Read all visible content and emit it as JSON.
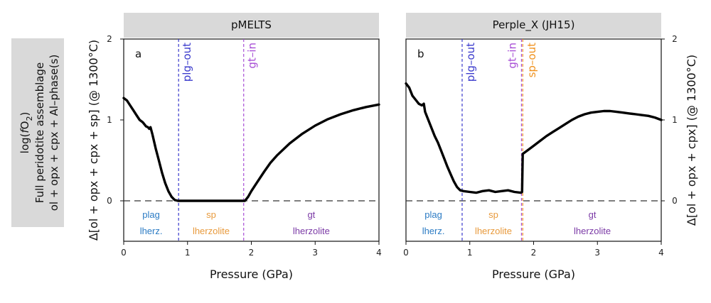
{
  "side_label": {
    "line1": "log(fO2)",
    "line1_main": "log(",
    "line1_f": "f",
    "line1_o": "O",
    "line1_sub": "2",
    "line1_close": ")",
    "line2": "Full peridotite assemblage",
    "line3": "ol + opx + cpx + Al–phase(s)"
  },
  "colors": {
    "curve": "#000000",
    "plg_out": "#3a3acc",
    "gt_in": "#a84fd6",
    "sp_out": "#f0921e",
    "plag_text": "#2b7bc4",
    "sp_text": "#e89a3c",
    "gt_text": "#7b3aa6",
    "strip_bg": "#d9d9d9",
    "side_bg": "#d9d9d9"
  },
  "chart_data": [
    {
      "type": "line",
      "panel": "a",
      "title": "pMELTS",
      "xlabel": "Pressure (GPa)",
      "ylabel": "Δ[ol + opx + cpx + sp] (@ 1300°C)",
      "xlim": [
        0,
        4
      ],
      "ylim": [
        -0.5,
        2
      ],
      "xticks": [
        "0",
        "1",
        "2",
        "3",
        "4"
      ],
      "yticks": [
        "0",
        "1",
        "2"
      ],
      "y_axis_side": "left",
      "reference_line": 0,
      "grid": false,
      "series": [
        {
          "x": [
            0,
            0.05,
            0.1,
            0.15,
            0.2,
            0.25,
            0.3,
            0.35,
            0.38,
            0.4,
            0.42,
            0.45,
            0.5,
            0.55,
            0.6,
            0.65,
            0.7,
            0.75,
            0.8,
            0.85,
            0.9,
            1.0,
            1.2,
            1.4,
            1.6,
            1.8,
            1.9,
            1.95,
            2.0,
            2.1,
            2.2,
            2.3,
            2.4,
            2.6,
            2.8,
            3.0,
            3.2,
            3.4,
            3.6,
            3.8,
            4.0
          ],
          "y": [
            1.27,
            1.24,
            1.18,
            1.12,
            1.06,
            1.0,
            0.97,
            0.92,
            0.91,
            0.89,
            0.91,
            0.82,
            0.65,
            0.5,
            0.35,
            0.22,
            0.12,
            0.05,
            0.01,
            0.0,
            0.0,
            0.0,
            0.0,
            0.0,
            0.0,
            0.0,
            0.0,
            0.05,
            0.12,
            0.24,
            0.36,
            0.47,
            0.56,
            0.71,
            0.83,
            0.93,
            1.01,
            1.07,
            1.12,
            1.16,
            1.19
          ]
        }
      ],
      "phase_boundaries": [
        {
          "label": "plg–out",
          "x": 0.86,
          "color_key": "plg_out"
        },
        {
          "label": "gt–in",
          "x": 1.88,
          "color_key": "gt_in"
        }
      ],
      "zones": [
        {
          "top": "plag",
          "bottom": "lherz.",
          "x_center": 0.43,
          "color_key": "plag_text"
        },
        {
          "top": "sp",
          "bottom": "lherzolite",
          "x_center": 1.37,
          "color_key": "sp_text"
        },
        {
          "top": "gt",
          "bottom": "lherzolite",
          "x_center": 2.94,
          "color_key": "gt_text"
        }
      ]
    },
    {
      "type": "line",
      "panel": "b",
      "title": "Perple_X (JH15)",
      "xlabel": "Pressure (GPa)",
      "ylabel": "Δ[ol + opx + cpx] (@ 1300°C)",
      "xlim": [
        0,
        4
      ],
      "ylim": [
        -0.5,
        2
      ],
      "xticks": [
        "0",
        "1",
        "2",
        "3",
        "4"
      ],
      "yticks": [
        "0",
        "1",
        "2"
      ],
      "y_axis_side": "right",
      "reference_line": 0,
      "grid": false,
      "series": [
        {
          "x": [
            0,
            0.05,
            0.1,
            0.15,
            0.2,
            0.25,
            0.28,
            0.3,
            0.35,
            0.4,
            0.45,
            0.5,
            0.55,
            0.6,
            0.65,
            0.7,
            0.75,
            0.8,
            0.85,
            0.9,
            1.0,
            1.1,
            1.2,
            1.3,
            1.4,
            1.5,
            1.6,
            1.7,
            1.8,
            1.82,
            1.83,
            1.9,
            2.0,
            2.1,
            2.2,
            2.3,
            2.4,
            2.5,
            2.6,
            2.7,
            2.8,
            2.9,
            3.0,
            3.1,
            3.2,
            3.3,
            3.4,
            3.5,
            3.6,
            3.7,
            3.8,
            3.9,
            4.0
          ],
          "y": [
            1.45,
            1.4,
            1.3,
            1.25,
            1.2,
            1.18,
            1.2,
            1.1,
            1.0,
            0.9,
            0.8,
            0.72,
            0.62,
            0.52,
            0.42,
            0.33,
            0.24,
            0.17,
            0.13,
            0.12,
            0.11,
            0.1,
            0.12,
            0.13,
            0.11,
            0.12,
            0.13,
            0.11,
            0.1,
            0.11,
            0.58,
            0.62,
            0.68,
            0.74,
            0.8,
            0.85,
            0.9,
            0.95,
            1.0,
            1.04,
            1.07,
            1.09,
            1.1,
            1.11,
            1.11,
            1.1,
            1.09,
            1.08,
            1.07,
            1.06,
            1.05,
            1.03,
            1.0
          ]
        }
      ],
      "phase_boundaries": [
        {
          "label": "plg–out",
          "x": 0.88,
          "color_key": "plg_out"
        },
        {
          "label": "gt–in",
          "x": 1.81,
          "color_key": "gt_in"
        },
        {
          "label": "sp–out",
          "x": 1.83,
          "color_key": "sp_out"
        }
      ],
      "zones": [
        {
          "top": "plag",
          "bottom": "lherz.",
          "x_center": 0.43,
          "color_key": "plag_text"
        },
        {
          "top": "sp",
          "bottom": "lherzolite",
          "x_center": 1.37,
          "color_key": "sp_text"
        },
        {
          "top": "gt",
          "bottom": "lherzolite",
          "x_center": 2.92,
          "color_key": "gt_text"
        }
      ]
    }
  ]
}
